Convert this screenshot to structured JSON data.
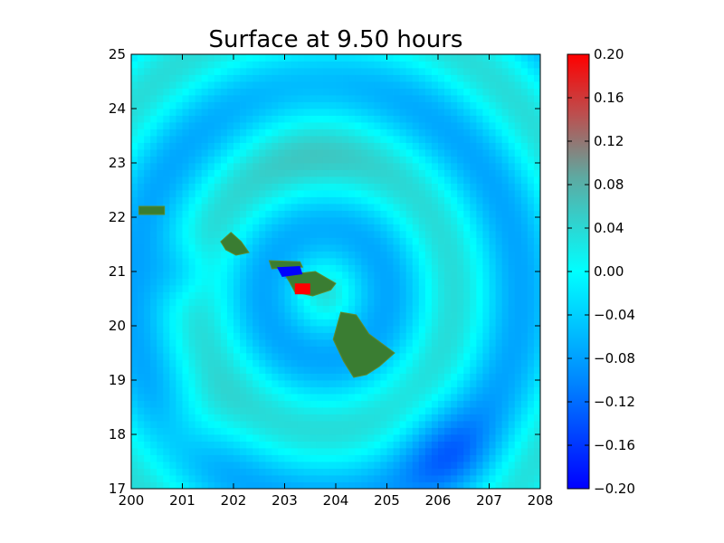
{
  "chart_data": {
    "type": "heatmap",
    "title": "Surface at 9.50 hours",
    "xlabel": "",
    "ylabel": "",
    "xlim": [
      200,
      208
    ],
    "ylim": [
      17,
      25
    ],
    "x_ticks": [
      "200",
      "201",
      "202",
      "203",
      "204",
      "205",
      "206",
      "207",
      "208"
    ],
    "y_ticks": [
      "17",
      "18",
      "19",
      "20",
      "21",
      "22",
      "23",
      "24",
      "25"
    ],
    "grid": false,
    "colorbar": {
      "range": [
        -0.2,
        0.2
      ],
      "ticks": [
        "0.20",
        "0.16",
        "0.12",
        "0.08",
        "0.04",
        "0.00",
        "−0.04",
        "−0.08",
        "−0.12",
        "−0.16",
        "−0.20"
      ],
      "colors": {
        "min": "#0000ff",
        "low": "#0088ff",
        "zero": "#00ffff",
        "mid": "#5fa8a0",
        "high": "#bb5050",
        "max": "#ff0000"
      }
    },
    "land_color": "#3a7d32",
    "islands": [
      {
        "name": "Kauai",
        "lon": 200.3,
        "lat": 22.1
      },
      {
        "name": "Oahu",
        "lon": 202.0,
        "lat": 21.5
      },
      {
        "name": "Molokai",
        "lon": 203.1,
        "lat": 21.1
      },
      {
        "name": "Maui",
        "lon": 203.6,
        "lat": 20.8
      },
      {
        "name": "Hawaii",
        "lon": 204.5,
        "lat": 19.6
      }
    ]
  }
}
